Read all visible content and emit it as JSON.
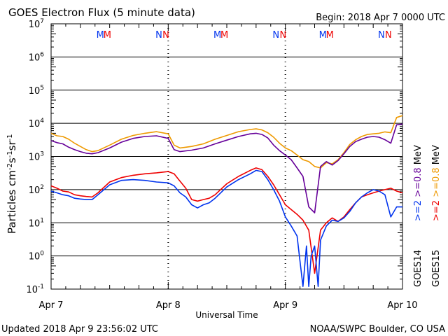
{
  "header": {
    "title": "GOES Electron Flux (5 minute data)",
    "begin": "Begin: 2018 Apr 7 0000 UTC"
  },
  "footer": {
    "updated": "Updated 2018 Apr  9 23:56:02 UTC",
    "source": "NOAA/SWPC Boulder, CO USA"
  },
  "colors": {
    "goes14_2mev": "#0033ee",
    "goes15_2mev": "#ee0000",
    "goes14_08mev": "#660099",
    "goes15_08mev": "#ee9900"
  },
  "chart_data": {
    "type": "line",
    "title": "GOES Electron Flux (5 minute data)",
    "xlabel": "Universal Time",
    "ylabel": "Particles cm-2s-1sr-1",
    "x_unit": "days since Apr 7 0000 UTC",
    "xlim": [
      0,
      3
    ],
    "ylim": [
      0.1,
      10000000
    ],
    "log_scale_y": true,
    "x_ticks": [
      {
        "x": 0,
        "label": "Apr 7"
      },
      {
        "x": 1,
        "label": "Apr 8"
      },
      {
        "x": 2,
        "label": "Apr 9"
      },
      {
        "x": 3,
        "label": "Apr 10"
      }
    ],
    "y_ticks": [
      {
        "exp": "7",
        "base": "10"
      },
      {
        "exp": "6",
        "base": "10"
      },
      {
        "exp": "5",
        "base": "10"
      },
      {
        "exp": "4",
        "base": "10"
      },
      {
        "exp": "3",
        "base": "10"
      },
      {
        "exp": "2",
        "base": "10"
      },
      {
        "exp": "1",
        "base": "10"
      },
      {
        "exp": "0",
        "base": "10"
      },
      {
        "exp": "-1",
        "base": "10"
      }
    ],
    "threshold_line": 1000,
    "top_markers": [
      {
        "x": 0.42,
        "label": "M",
        "color": "#0033ee"
      },
      {
        "x": 0.48,
        "label": "M",
        "color": "#ee0000"
      },
      {
        "x": 0.92,
        "label": "N",
        "color": "#0033ee"
      },
      {
        "x": 0.98,
        "label": "N",
        "color": "#ee0000"
      },
      {
        "x": 1.42,
        "label": "M",
        "color": "#0033ee"
      },
      {
        "x": 1.48,
        "label": "M",
        "color": "#ee0000"
      },
      {
        "x": 1.92,
        "label": "N",
        "color": "#0033ee"
      },
      {
        "x": 1.98,
        "label": "N",
        "color": "#ee0000"
      },
      {
        "x": 2.32,
        "label": "M",
        "color": "#0033ee"
      },
      {
        "x": 2.38,
        "label": "M",
        "color": "#ee0000"
      },
      {
        "x": 2.82,
        "label": "N",
        "color": "#0033ee"
      },
      {
        "x": 2.88,
        "label": "N",
        "color": "#ee0000"
      }
    ],
    "series": [
      {
        "name": ">=0.8 MeV",
        "satellite": "GOES15",
        "color": "#ee9900",
        "x": [
          0,
          0.05,
          0.1,
          0.15,
          0.2,
          0.25,
          0.3,
          0.35,
          0.4,
          0.5,
          0.6,
          0.7,
          0.8,
          0.9,
          1.0,
          1.05,
          1.1,
          1.2,
          1.3,
          1.4,
          1.5,
          1.6,
          1.7,
          1.75,
          1.8,
          1.85,
          1.9,
          1.95,
          2.0,
          2.05,
          2.1,
          2.15,
          2.2,
          2.25,
          2.3,
          2.35,
          2.4,
          2.45,
          2.5,
          2.55,
          2.6,
          2.65,
          2.7,
          2.75,
          2.8,
          2.85,
          2.9,
          2.95,
          3.0
        ],
        "y": [
          5000,
          4200,
          4000,
          3300,
          2500,
          2000,
          1600,
          1400,
          1500,
          2200,
          3300,
          4300,
          5000,
          5600,
          4800,
          2200,
          1800,
          2000,
          2400,
          3300,
          4300,
          5600,
          6500,
          6800,
          6300,
          5200,
          3800,
          2500,
          1800,
          1500,
          1100,
          800,
          700,
          500,
          450,
          650,
          600,
          800,
          1300,
          2300,
          3200,
          4000,
          4600,
          4800,
          5000,
          5500,
          5200,
          15000,
          17000
        ]
      },
      {
        "name": ">=0.8 MeV",
        "satellite": "GOES14",
        "color": "#660099",
        "x": [
          0,
          0.05,
          0.1,
          0.15,
          0.2,
          0.25,
          0.3,
          0.35,
          0.4,
          0.5,
          0.6,
          0.7,
          0.8,
          0.9,
          1.0,
          1.05,
          1.1,
          1.2,
          1.3,
          1.4,
          1.5,
          1.6,
          1.7,
          1.75,
          1.8,
          1.85,
          1.9,
          1.95,
          2.0,
          2.05,
          2.1,
          2.15,
          2.2,
          2.25,
          2.3,
          2.35,
          2.4,
          2.45,
          2.5,
          2.55,
          2.6,
          2.65,
          2.7,
          2.75,
          2.8,
          2.85,
          2.9,
          2.95,
          3.0
        ],
        "y": [
          3000,
          2600,
          2400,
          1900,
          1600,
          1400,
          1250,
          1200,
          1300,
          1800,
          2700,
          3500,
          4000,
          4200,
          3500,
          1600,
          1400,
          1550,
          1800,
          2400,
          3100,
          4000,
          4800,
          5000,
          4600,
          3600,
          2200,
          1500,
          1100,
          800,
          450,
          250,
          30,
          20,
          500,
          700,
          550,
          750,
          1200,
          2000,
          2800,
          3300,
          3800,
          4000,
          3800,
          3200,
          2500,
          9000,
          9500
        ]
      },
      {
        "name": ">=2 MeV",
        "satellite": "GOES15",
        "color": "#ee0000",
        "x": [
          0,
          0.05,
          0.1,
          0.15,
          0.2,
          0.25,
          0.3,
          0.35,
          0.4,
          0.5,
          0.6,
          0.7,
          0.8,
          0.9,
          1.0,
          1.05,
          1.1,
          1.15,
          1.2,
          1.25,
          1.3,
          1.35,
          1.4,
          1.5,
          1.6,
          1.7,
          1.75,
          1.8,
          1.85,
          1.9,
          1.95,
          2.0,
          2.05,
          2.1,
          2.15,
          2.2,
          2.25,
          2.3,
          2.35,
          2.4,
          2.45,
          2.5,
          2.55,
          2.6,
          2.65,
          2.7,
          2.75,
          2.8,
          2.85,
          2.9,
          2.95,
          3.0
        ],
        "y": [
          130,
          110,
          90,
          85,
          70,
          65,
          62,
          60,
          80,
          170,
          230,
          270,
          300,
          320,
          350,
          300,
          180,
          110,
          50,
          45,
          50,
          55,
          70,
          150,
          250,
          380,
          450,
          400,
          250,
          140,
          70,
          35,
          25,
          18,
          12,
          6,
          0.3,
          6,
          10,
          14,
          11,
          15,
          25,
          40,
          60,
          70,
          80,
          90,
          100,
          110,
          90,
          80
        ]
      },
      {
        "name": ">=2 MeV",
        "satellite": "GOES14",
        "color": "#0033ee",
        "x": [
          0,
          0.05,
          0.1,
          0.15,
          0.2,
          0.25,
          0.3,
          0.35,
          0.4,
          0.5,
          0.6,
          0.7,
          0.8,
          0.9,
          1.0,
          1.05,
          1.1,
          1.15,
          1.2,
          1.25,
          1.3,
          1.35,
          1.4,
          1.5,
          1.6,
          1.7,
          1.75,
          1.8,
          1.85,
          1.9,
          1.95,
          2.0,
          2.05,
          2.1,
          2.12,
          2.15,
          2.18,
          2.2,
          2.22,
          2.25,
          2.28,
          2.3,
          2.35,
          2.4,
          2.45,
          2.5,
          2.55,
          2.6,
          2.65,
          2.7,
          2.75,
          2.8,
          2.85,
          2.9,
          2.95,
          3.0
        ],
        "y": [
          90,
          80,
          70,
          65,
          55,
          52,
          50,
          50,
          70,
          140,
          190,
          200,
          190,
          170,
          160,
          130,
          80,
          60,
          35,
          28,
          35,
          40,
          55,
          120,
          200,
          300,
          380,
          350,
          200,
          100,
          45,
          15,
          8,
          4,
          1,
          0.12,
          2,
          0.12,
          1,
          2,
          0.12,
          3,
          8,
          12,
          11,
          14,
          22,
          40,
          60,
          80,
          100,
          90,
          70,
          15,
          30,
          30
        ]
      }
    ],
    "legend": [
      {
        "text": ">=2",
        "color": "#0033ee"
      },
      {
        "text": ">=0.8",
        "color": "#660099"
      },
      {
        "text": "MeV",
        "color": "#000000"
      },
      {
        "text": ">=2",
        "color": "#ee0000"
      },
      {
        "text": ">=0.8",
        "color": "#ee9900"
      },
      {
        "text": "MeV",
        "color": "#000000"
      },
      {
        "text": "GOES14",
        "color": "#000000"
      },
      {
        "text": "GOES15",
        "color": "#000000"
      }
    ]
  }
}
